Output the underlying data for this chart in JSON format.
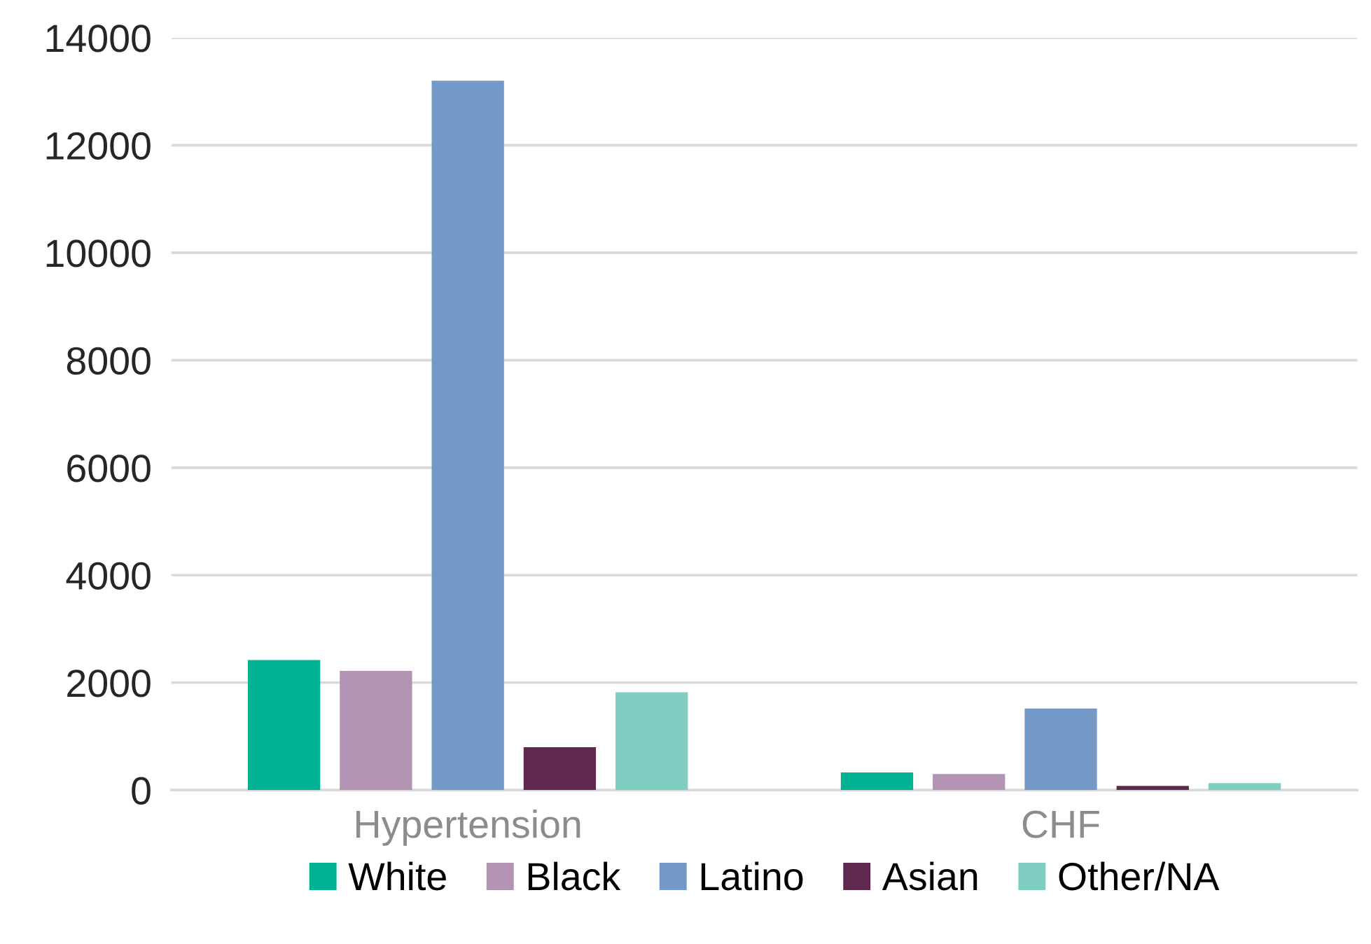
{
  "chart_data": {
    "type": "bar",
    "categories": [
      "Hypertension",
      "CHF"
    ],
    "series": [
      {
        "name": "White",
        "color": "#00b294",
        "values": [
          2420,
          330
        ]
      },
      {
        "name": "Black",
        "color": "#b293b1",
        "values": [
          2220,
          300
        ]
      },
      {
        "name": "Latino",
        "color": "#7499c7",
        "values": [
          13200,
          1520
        ]
      },
      {
        "name": "Asian",
        "color": "#5e284f",
        "values": [
          800,
          80
        ]
      },
      {
        "name": "Other/NA",
        "color": "#80cec2",
        "values": [
          1820,
          130
        ]
      }
    ],
    "ylim": [
      0,
      14000
    ],
    "yticks": [
      0,
      2000,
      4000,
      6000,
      8000,
      10000,
      12000,
      14000
    ],
    "grid": "y",
    "legend": "bottom"
  }
}
